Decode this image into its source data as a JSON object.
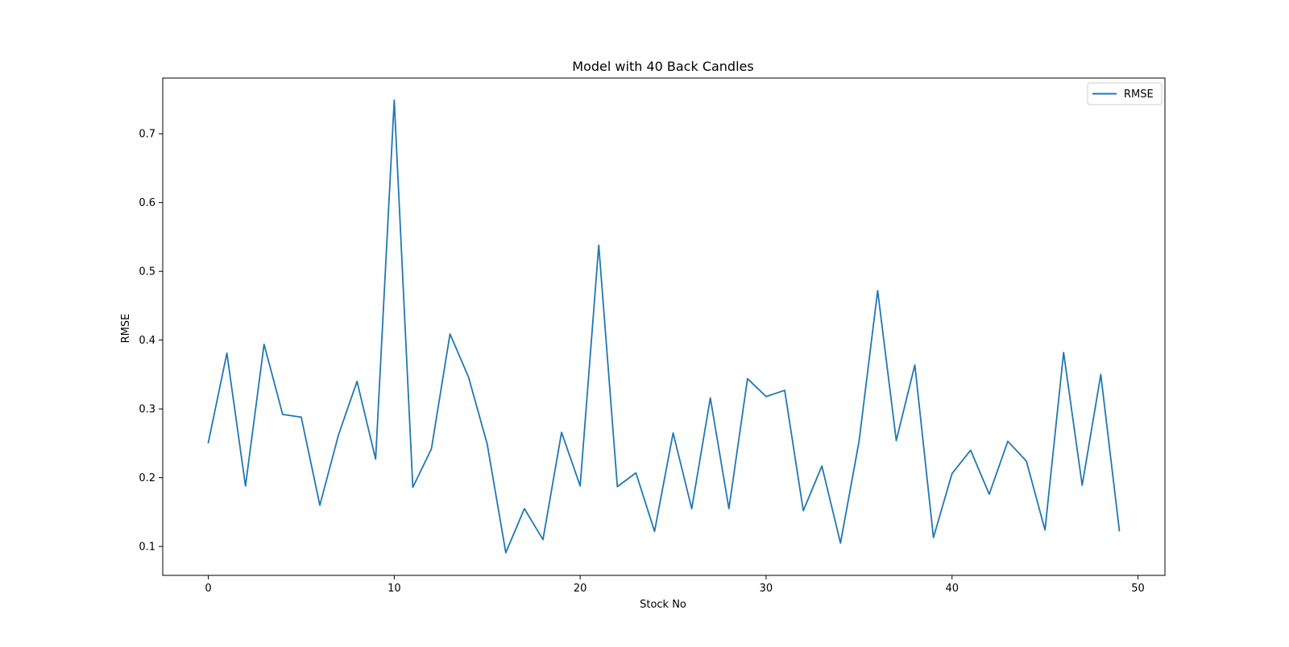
{
  "chart_data": {
    "type": "line",
    "title": "Model with 40 Back Candles",
    "xlabel": "Stock No",
    "ylabel": "RMSE",
    "xlim": [
      -2.45,
      51.45
    ],
    "ylim": [
      0.058,
      0.781
    ],
    "xticks": [
      0,
      10,
      20,
      30,
      40,
      50
    ],
    "yticks": [
      0.1,
      0.2,
      0.3,
      0.4,
      0.5,
      0.6,
      0.7
    ],
    "grid": false,
    "legend": {
      "position": "upper right",
      "entries": [
        "RMSE"
      ]
    },
    "series": [
      {
        "name": "RMSE",
        "color": "#1f77b4",
        "x": [
          0,
          1,
          2,
          3,
          4,
          5,
          6,
          7,
          8,
          9,
          10,
          11,
          12,
          13,
          14,
          15,
          16,
          17,
          18,
          19,
          20,
          21,
          22,
          23,
          24,
          25,
          26,
          27,
          28,
          29,
          30,
          31,
          32,
          33,
          34,
          35,
          36,
          37,
          38,
          39,
          40,
          41,
          42,
          43,
          44,
          45,
          46,
          47,
          48,
          49
        ],
        "values": [
          0.251,
          0.381,
          0.188,
          0.394,
          0.292,
          0.288,
          0.16,
          0.262,
          0.34,
          0.227,
          0.749,
          0.186,
          0.242,
          0.409,
          0.346,
          0.249,
          0.091,
          0.155,
          0.11,
          0.266,
          0.188,
          0.538,
          0.187,
          0.207,
          0.122,
          0.265,
          0.155,
          0.316,
          0.155,
          0.344,
          0.318,
          0.327,
          0.152,
          0.217,
          0.105,
          0.253,
          0.472,
          0.254,
          0.364,
          0.113,
          0.206,
          0.24,
          0.176,
          0.253,
          0.224,
          0.124,
          0.382,
          0.189,
          0.35,
          0.123
        ]
      }
    ]
  }
}
